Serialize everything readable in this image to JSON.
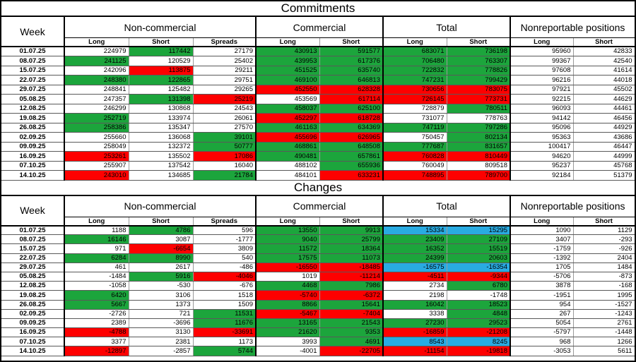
{
  "colors": {
    "green": "#1ca53c",
    "red": "#fe0000",
    "blue": "#29abe2",
    "white": "#ffffff"
  },
  "columns": {
    "week": "Week",
    "groups": [
      {
        "label": "Non-commercial",
        "cols": [
          "Long",
          "Short",
          "Spreads"
        ]
      },
      {
        "label": "Commercial",
        "cols": [
          "Long",
          "Short"
        ]
      },
      {
        "label": "Total",
        "cols": [
          "Long",
          "Short"
        ]
      },
      {
        "label": "Nonreportable positions",
        "cols": [
          "Long",
          "Short"
        ]
      }
    ]
  },
  "sections": [
    {
      "title": "Commitments",
      "rows": [
        {
          "week": "01.07.25",
          "values": [
            "224979",
            "117442",
            "27179",
            "430913",
            "591577",
            "683071",
            "736198",
            "95960",
            "42833"
          ],
          "colors": [
            "w",
            "g",
            "w",
            "g",
            "g",
            "g",
            "g",
            "w",
            "w"
          ]
        },
        {
          "week": "08.07.25",
          "values": [
            "241125",
            "120529",
            "25402",
            "439953",
            "617376",
            "706480",
            "763307",
            "99367",
            "42540"
          ],
          "colors": [
            "g",
            "w",
            "w",
            "g",
            "g",
            "g",
            "g",
            "w",
            "w"
          ]
        },
        {
          "week": "15.07.25",
          "values": [
            "242096",
            "113875",
            "29211",
            "451525",
            "635740",
            "722832",
            "778826",
            "97608",
            "41614"
          ],
          "colors": [
            "w",
            "r",
            "w",
            "g",
            "g",
            "g",
            "g",
            "w",
            "w"
          ]
        },
        {
          "week": "22.07.25",
          "values": [
            "248380",
            "122865",
            "29751",
            "469100",
            "646813",
            "747231",
            "799429",
            "96216",
            "44018"
          ],
          "colors": [
            "g",
            "g",
            "w",
            "g",
            "g",
            "g",
            "g",
            "w",
            "w"
          ]
        },
        {
          "week": "29.07.25",
          "values": [
            "248841",
            "125482",
            "29265",
            "452550",
            "628328",
            "730656",
            "783075",
            "97921",
            "45502"
          ],
          "colors": [
            "w",
            "w",
            "w",
            "r",
            "r",
            "r",
            "r",
            "w",
            "w"
          ]
        },
        {
          "week": "05.08.25",
          "values": [
            "247357",
            "131398",
            "25219",
            "453569",
            "617114",
            "726145",
            "773731",
            "92215",
            "44629"
          ],
          "colors": [
            "w",
            "g",
            "r",
            "w",
            "r",
            "r",
            "r",
            "w",
            "w"
          ]
        },
        {
          "week": "12.08.25",
          "values": [
            "246299",
            "130868",
            "24543",
            "458037",
            "625100",
            "728879",
            "780511",
            "96093",
            "44461"
          ],
          "colors": [
            "w",
            "w",
            "w",
            "g",
            "g",
            "w",
            "g",
            "w",
            "w"
          ]
        },
        {
          "week": "19.08.25",
          "values": [
            "252719",
            "133974",
            "26061",
            "452297",
            "618728",
            "731077",
            "778763",
            "94142",
            "46456"
          ],
          "colors": [
            "g",
            "w",
            "w",
            "r",
            "r",
            "w",
            "w",
            "w",
            "w"
          ]
        },
        {
          "week": "26.08.25",
          "values": [
            "258386",
            "135347",
            "27570",
            "461163",
            "634369",
            "747119",
            "797286",
            "95096",
            "44929"
          ],
          "colors": [
            "g",
            "w",
            "w",
            "g",
            "g",
            "g",
            "g",
            "w",
            "w"
          ]
        },
        {
          "week": "02.09.25",
          "values": [
            "255660",
            "136068",
            "39101",
            "455696",
            "626965",
            "750457",
            "802134",
            "95363",
            "43686"
          ],
          "colors": [
            "w",
            "w",
            "g",
            "r",
            "r",
            "w",
            "g",
            "w",
            "w"
          ]
        },
        {
          "week": "09.09.25",
          "values": [
            "258049",
            "132372",
            "50777",
            "468861",
            "648508",
            "777687",
            "831657",
            "100417",
            "46447"
          ],
          "colors": [
            "w",
            "w",
            "g",
            "g",
            "g",
            "g",
            "g",
            "w",
            "w"
          ]
        },
        {
          "week": "16.09.25",
          "values": [
            "253261",
            "135502",
            "17086",
            "490481",
            "657861",
            "760828",
            "810449",
            "94620",
            "44999"
          ],
          "colors": [
            "r",
            "w",
            "r",
            "g",
            "g",
            "r",
            "r",
            "w",
            "w"
          ]
        },
        {
          "week": "07.10.25",
          "values": [
            "255907",
            "137542",
            "16040",
            "488102",
            "655936",
            "760049",
            "809518",
            "95237",
            "45768"
          ],
          "colors": [
            "w",
            "w",
            "w",
            "w",
            "g",
            "w",
            "w",
            "w",
            "w"
          ]
        },
        {
          "week": "14.10.25",
          "values": [
            "243010",
            "134685",
            "21784",
            "484101",
            "633231",
            "748895",
            "789700",
            "92184",
            "51379"
          ],
          "colors": [
            "r",
            "w",
            "g",
            "w",
            "r",
            "r",
            "r",
            "w",
            "w"
          ]
        }
      ]
    },
    {
      "title": "Changes",
      "rows": [
        {
          "week": "01.07.25",
          "values": [
            "1188",
            "4786",
            "596",
            "13550",
            "9913",
            "15334",
            "15295",
            "1090",
            "1129"
          ],
          "colors": [
            "w",
            "g",
            "w",
            "g",
            "g",
            "b",
            "b",
            "w",
            "w"
          ]
        },
        {
          "week": "08.07.25",
          "values": [
            "16146",
            "3087",
            "-1777",
            "9040",
            "25799",
            "23409",
            "27109",
            "3407",
            "-293"
          ],
          "colors": [
            "g",
            "w",
            "w",
            "g",
            "g",
            "g",
            "g",
            "w",
            "w"
          ]
        },
        {
          "week": "15.07.25",
          "values": [
            "971",
            "-6654",
            "3809",
            "11572",
            "18364",
            "16352",
            "15519",
            "-1759",
            "-926"
          ],
          "colors": [
            "w",
            "r",
            "w",
            "g",
            "g",
            "g",
            "g",
            "w",
            "w"
          ]
        },
        {
          "week": "22.07.25",
          "values": [
            "6284",
            "8990",
            "540",
            "17575",
            "11073",
            "24399",
            "20603",
            "-1392",
            "2404"
          ],
          "colors": [
            "g",
            "g",
            "w",
            "g",
            "g",
            "g",
            "g",
            "w",
            "w"
          ]
        },
        {
          "week": "29.07.25",
          "values": [
            "461",
            "2617",
            "-486",
            "-16550",
            "-18485",
            "-16575",
            "-16354",
            "1705",
            "1484"
          ],
          "colors": [
            "w",
            "w",
            "w",
            "r",
            "r",
            "b",
            "b",
            "w",
            "w"
          ]
        },
        {
          "week": "05.08.25",
          "values": [
            "-1484",
            "5916",
            "-4046",
            "1019",
            "-11214",
            "-4511",
            "-9344",
            "-5706",
            "-873"
          ],
          "colors": [
            "w",
            "g",
            "r",
            "w",
            "r",
            "r",
            "r",
            "w",
            "w"
          ]
        },
        {
          "week": "12.08.25",
          "values": [
            "-1058",
            "-530",
            "-676",
            "4468",
            "7986",
            "2734",
            "6780",
            "3878",
            "-168"
          ],
          "colors": [
            "w",
            "w",
            "w",
            "g",
            "g",
            "w",
            "g",
            "w",
            "w"
          ]
        },
        {
          "week": "19.08.25",
          "values": [
            "6420",
            "3106",
            "1518",
            "-5740",
            "-6372",
            "2198",
            "-1748",
            "-1951",
            "1995"
          ],
          "colors": [
            "g",
            "w",
            "w",
            "r",
            "r",
            "w",
            "w",
            "w",
            "w"
          ]
        },
        {
          "week": "26.08.25",
          "values": [
            "5667",
            "1373",
            "1509",
            "8866",
            "15641",
            "16042",
            "18523",
            "954",
            "-1527"
          ],
          "colors": [
            "g",
            "w",
            "w",
            "g",
            "g",
            "g",
            "g",
            "w",
            "w"
          ]
        },
        {
          "week": "02.09.25",
          "values": [
            "-2726",
            "721",
            "11531",
            "-5467",
            "-7404",
            "3338",
            "4848",
            "267",
            "-1243"
          ],
          "colors": [
            "w",
            "w",
            "g",
            "r",
            "r",
            "w",
            "g",
            "w",
            "w"
          ]
        },
        {
          "week": "09.09.25",
          "values": [
            "2389",
            "-3696",
            "11676",
            "13165",
            "21543",
            "27230",
            "29523",
            "5054",
            "2761"
          ],
          "colors": [
            "w",
            "w",
            "g",
            "g",
            "g",
            "g",
            "g",
            "w",
            "w"
          ]
        },
        {
          "week": "16.09.25",
          "values": [
            "-4788",
            "3130",
            "-33691",
            "21620",
            "9353",
            "-16859",
            "-21208",
            "-5797",
            "-1448"
          ],
          "colors": [
            "r",
            "w",
            "r",
            "g",
            "g",
            "r",
            "r",
            "w",
            "w"
          ]
        },
        {
          "week": "07.10.25",
          "values": [
            "3377",
            "2381",
            "1173",
            "3993",
            "4691",
            "8543",
            "8245",
            "968",
            "1266"
          ],
          "colors": [
            "w",
            "w",
            "w",
            "w",
            "g",
            "b",
            "b",
            "w",
            "w"
          ]
        },
        {
          "week": "14.10.25",
          "values": [
            "-12897",
            "-2857",
            "5744",
            "-4001",
            "-22705",
            "-11154",
            "-19818",
            "-3053",
            "5611"
          ],
          "colors": [
            "r",
            "w",
            "g",
            "w",
            "r",
            "r",
            "r",
            "w",
            "w"
          ]
        }
      ]
    }
  ]
}
